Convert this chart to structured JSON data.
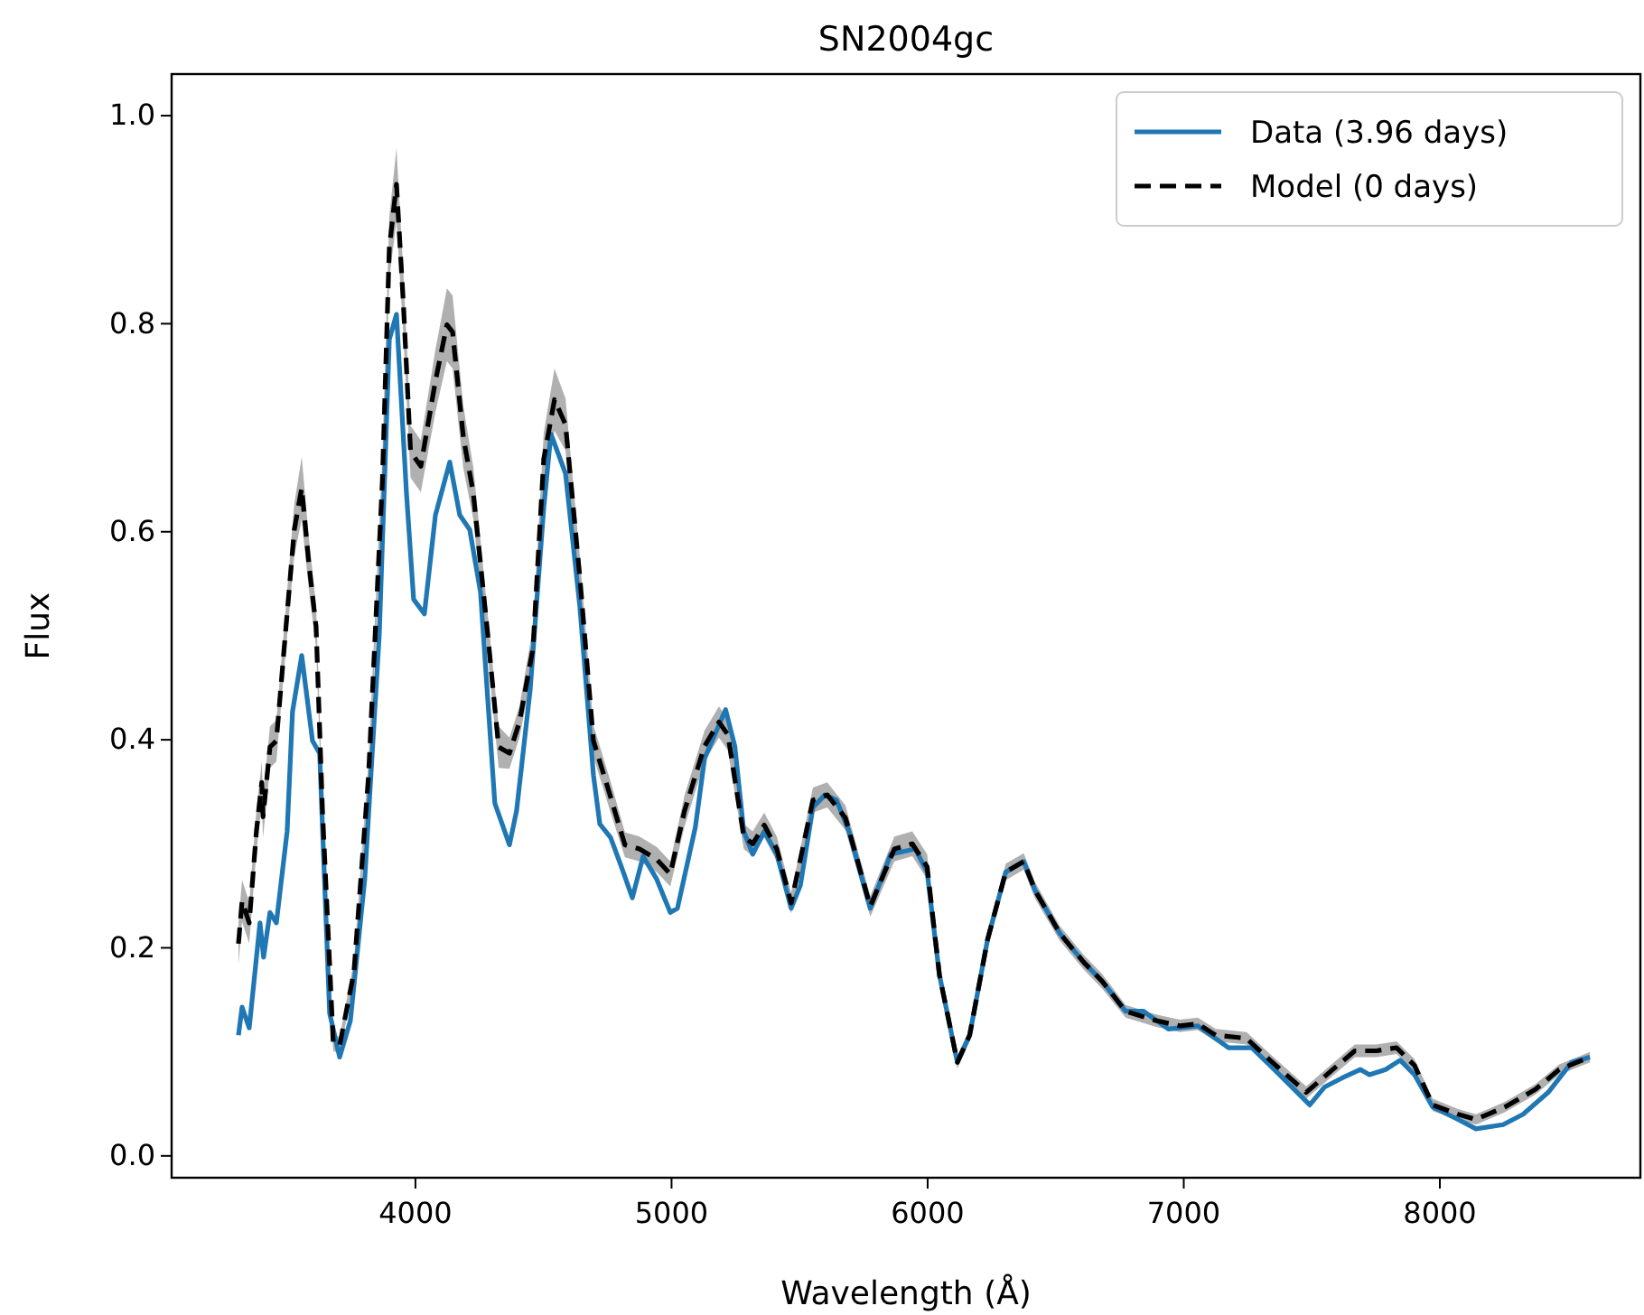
{
  "chart_data": {
    "type": "line",
    "title": "SN2004gc",
    "xlabel": "Wavelength (Å)",
    "ylabel": "Flux",
    "xlim": [
      3048,
      8783
    ],
    "ylim": [
      -0.021,
      1.04
    ],
    "xticks": [
      4000,
      5000,
      6000,
      7000,
      8000
    ],
    "yticks": [
      {
        "value": 0,
        "label": "0.0"
      },
      {
        "value": 0.2,
        "label": "0.2"
      },
      {
        "value": 0.4,
        "label": "0.4"
      },
      {
        "value": 0.6,
        "label": "0.6"
      },
      {
        "value": 0.8,
        "label": "0.8"
      },
      {
        "value": 1,
        "label": "1.0"
      }
    ],
    "grid": false,
    "legend": "top right",
    "marker": "none",
    "series": [
      {
        "name": "Data (3.96 days)",
        "color": "#1f77b4",
        "line_style": "solid",
        "x": [
          3309,
          3323,
          3351,
          3393,
          3407,
          3432,
          3457,
          3499,
          3520,
          3556,
          3598,
          3626,
          3665,
          3704,
          3746,
          3802,
          3859,
          3898,
          3926,
          3965,
          3993,
          4035,
          4078,
          4134,
          4173,
          4212,
          4254,
          4310,
          4367,
          4395,
          4448,
          4501,
          4529,
          4586,
          4642,
          4695,
          4720,
          4762,
          4804,
          4847,
          4889,
          4942,
          4995,
          5023,
          5093,
          5129,
          5211,
          5247,
          5282,
          5317,
          5362,
          5411,
          5467,
          5503,
          5552,
          5599,
          5644,
          5693,
          5776,
          5856,
          5952,
          5998,
          6046,
          6116,
          6164,
          6234,
          6305,
          6375,
          6420,
          6516,
          6610,
          6681,
          6773,
          6843,
          6940,
          7055,
          7175,
          7266,
          7337,
          7386,
          7492,
          7549,
          7619,
          7690,
          7725,
          7788,
          7845,
          7901,
          7972,
          8071,
          8141,
          8247,
          8325,
          8423,
          8515,
          8586
        ],
        "values": [
          0.116,
          0.143,
          0.123,
          0.224,
          0.191,
          0.234,
          0.224,
          0.312,
          0.427,
          0.481,
          0.399,
          0.387,
          0.137,
          0.095,
          0.13,
          0.266,
          0.502,
          0.785,
          0.809,
          0.637,
          0.535,
          0.521,
          0.616,
          0.667,
          0.616,
          0.602,
          0.542,
          0.339,
          0.299,
          0.332,
          0.448,
          0.623,
          0.694,
          0.656,
          0.528,
          0.366,
          0.319,
          0.306,
          0.278,
          0.248,
          0.288,
          0.266,
          0.234,
          0.238,
          0.316,
          0.382,
          0.429,
          0.394,
          0.312,
          0.29,
          0.312,
          0.29,
          0.238,
          0.26,
          0.335,
          0.347,
          0.342,
          0.312,
          0.238,
          0.29,
          0.295,
          0.273,
          0.174,
          0.09,
          0.116,
          0.208,
          0.273,
          0.283,
          0.255,
          0.214,
          0.186,
          0.168,
          0.139,
          0.139,
          0.122,
          0.125,
          0.104,
          0.104,
          0.087,
          0.075,
          0.049,
          0.066,
          0.075,
          0.083,
          0.078,
          0.083,
          0.092,
          0.078,
          0.047,
          0.035,
          0.026,
          0.03,
          0.04,
          0.061,
          0.09,
          0.095
        ]
      },
      {
        "name": "Model (0 days)",
        "color": "#000000",
        "line_style": "dashed",
        "x": [
          3309,
          3323,
          3351,
          3379,
          3400,
          3405,
          3432,
          3457,
          3485,
          3527,
          3556,
          3584,
          3612,
          3637,
          3679,
          3704,
          3760,
          3817,
          3871,
          3898,
          3926,
          3953,
          3981,
          4021,
          4078,
          4123,
          4145,
          4187,
          4226,
          4282,
          4325,
          4367,
          4406,
          4459,
          4501,
          4543,
          4586,
          4642,
          4695,
          4762,
          4818,
          4875,
          4942,
          4995,
          5051,
          5129,
          5185,
          5220,
          5282,
          5317,
          5362,
          5411,
          5467,
          5552,
          5608,
          5679,
          5776,
          5870,
          5940,
          5998,
          6046,
          6116,
          6164,
          6234,
          6305,
          6375,
          6420,
          6516,
          6610,
          6681,
          6773,
          6892,
          6984,
          7055,
          7125,
          7245,
          7337,
          7478,
          7577,
          7668,
          7753,
          7831,
          7901,
          7972,
          8071,
          8141,
          8254,
          8374,
          8466,
          8586
        ],
        "values": [
          0.204,
          0.245,
          0.224,
          0.312,
          0.359,
          0.326,
          0.393,
          0.399,
          0.481,
          0.602,
          0.642,
          0.569,
          0.509,
          0.332,
          0.109,
          0.106,
          0.177,
          0.366,
          0.649,
          0.873,
          0.934,
          0.819,
          0.677,
          0.663,
          0.745,
          0.799,
          0.792,
          0.691,
          0.637,
          0.502,
          0.393,
          0.387,
          0.417,
          0.488,
          0.67,
          0.727,
          0.703,
          0.556,
          0.399,
          0.345,
          0.299,
          0.295,
          0.285,
          0.271,
          0.332,
          0.394,
          0.417,
          0.405,
          0.307,
          0.3,
          0.318,
          0.295,
          0.243,
          0.342,
          0.347,
          0.325,
          0.24,
          0.295,
          0.3,
          0.278,
          0.174,
          0.09,
          0.116,
          0.208,
          0.273,
          0.283,
          0.255,
          0.214,
          0.186,
          0.168,
          0.139,
          0.13,
          0.125,
          0.127,
          0.116,
          0.113,
          0.092,
          0.061,
          0.082,
          0.101,
          0.101,
          0.104,
          0.087,
          0.049,
          0.04,
          0.035,
          0.047,
          0.064,
          0.083,
          0.095
        ],
        "lower": [
          0.184,
          0.225,
          0.204,
          0.292,
          0.339,
          0.306,
          0.373,
          0.379,
          0.461,
          0.577,
          0.612,
          0.544,
          0.489,
          0.317,
          0.101,
          0.098,
          0.167,
          0.351,
          0.624,
          0.843,
          0.899,
          0.789,
          0.652,
          0.638,
          0.715,
          0.764,
          0.757,
          0.661,
          0.612,
          0.482,
          0.373,
          0.372,
          0.402,
          0.468,
          0.645,
          0.697,
          0.678,
          0.536,
          0.384,
          0.33,
          0.287,
          0.283,
          0.273,
          0.259,
          0.317,
          0.379,
          0.402,
          0.39,
          0.295,
          0.288,
          0.306,
          0.283,
          0.233,
          0.33,
          0.335,
          0.313,
          0.23,
          0.283,
          0.288,
          0.266,
          0.166,
          0.084,
          0.11,
          0.2,
          0.265,
          0.275,
          0.247,
          0.207,
          0.179,
          0.161,
          0.133,
          0.124,
          0.119,
          0.121,
          0.11,
          0.107,
          0.086,
          0.055,
          0.076,
          0.095,
          0.095,
          0.098,
          0.081,
          0.043,
          0.035,
          0.03,
          0.042,
          0.059,
          0.078,
          0.09
        ],
        "upper": [
          0.224,
          0.265,
          0.244,
          0.332,
          0.379,
          0.346,
          0.413,
          0.419,
          0.501,
          0.627,
          0.672,
          0.594,
          0.529,
          0.347,
          0.117,
          0.114,
          0.187,
          0.381,
          0.674,
          0.903,
          0.969,
          0.849,
          0.702,
          0.688,
          0.775,
          0.834,
          0.827,
          0.721,
          0.662,
          0.522,
          0.413,
          0.402,
          0.432,
          0.508,
          0.695,
          0.757,
          0.728,
          0.576,
          0.414,
          0.36,
          0.311,
          0.307,
          0.297,
          0.283,
          0.347,
          0.409,
          0.432,
          0.42,
          0.319,
          0.312,
          0.33,
          0.307,
          0.253,
          0.354,
          0.359,
          0.337,
          0.25,
          0.307,
          0.312,
          0.29,
          0.182,
          0.096,
          0.122,
          0.216,
          0.281,
          0.291,
          0.263,
          0.221,
          0.193,
          0.175,
          0.145,
          0.136,
          0.131,
          0.133,
          0.122,
          0.119,
          0.098,
          0.067,
          0.088,
          0.107,
          0.107,
          0.11,
          0.093,
          0.055,
          0.045,
          0.04,
          0.052,
          0.069,
          0.088,
          0.1
        ]
      }
    ]
  }
}
